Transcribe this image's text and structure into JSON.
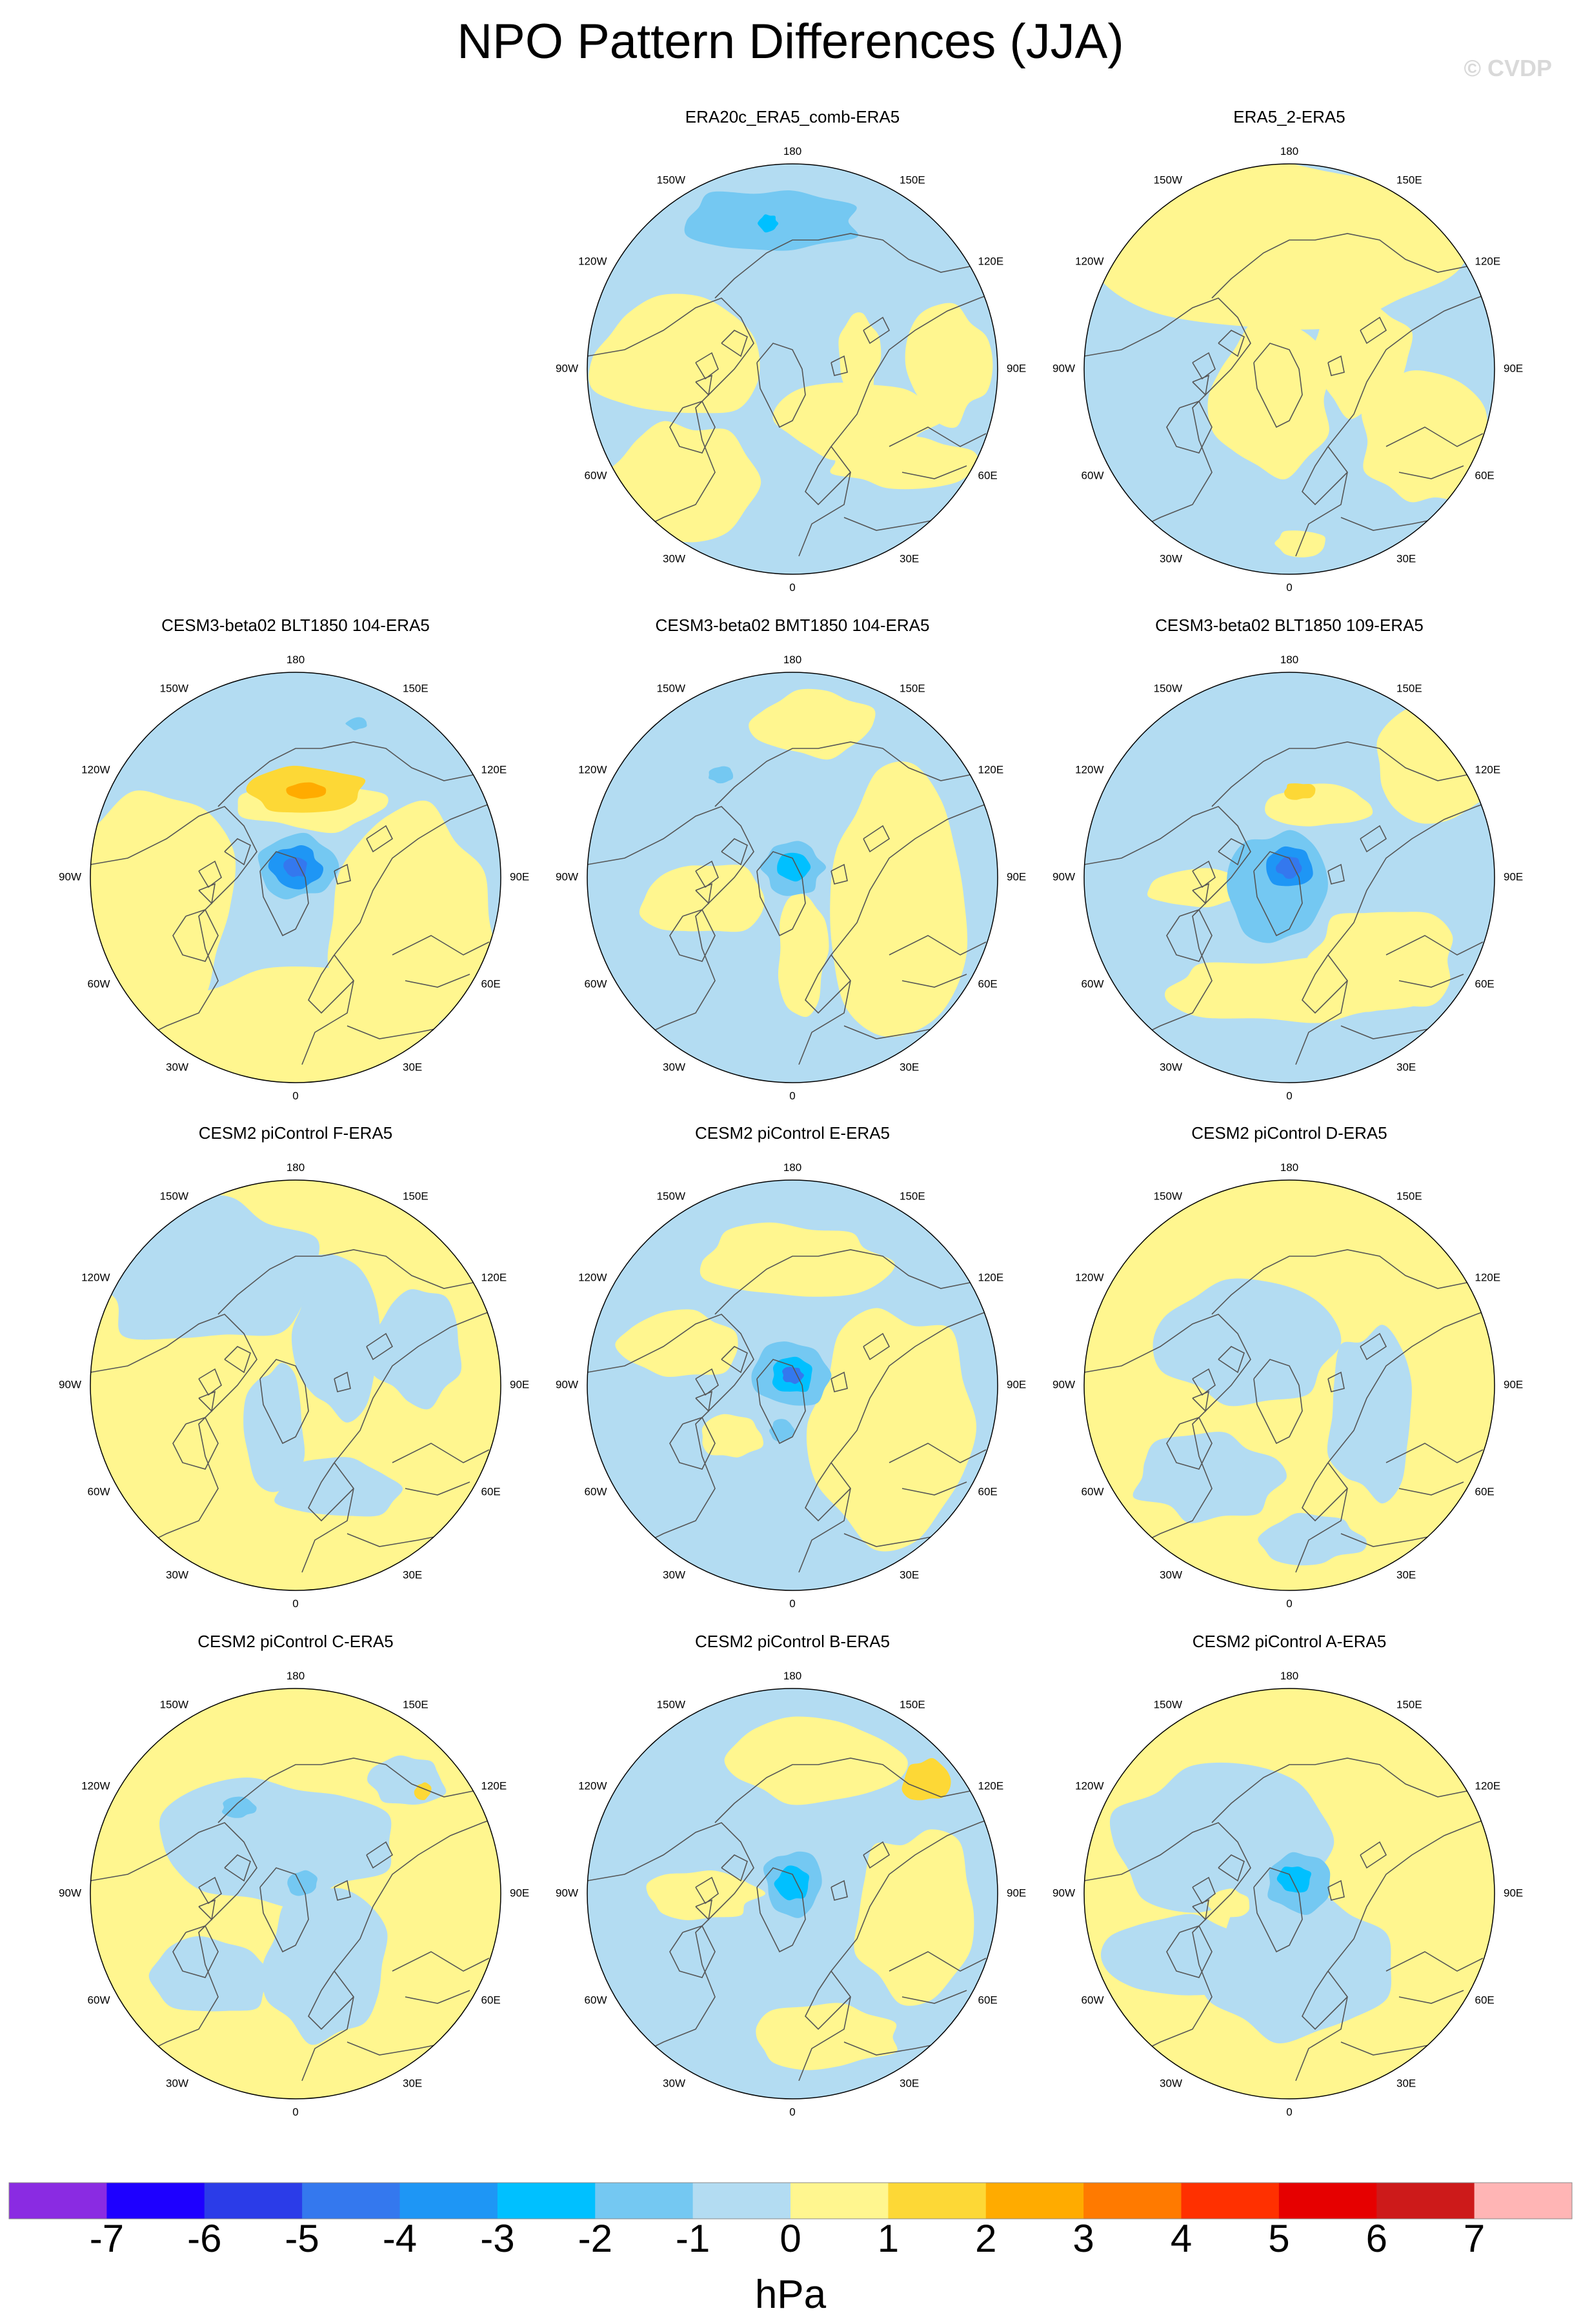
{
  "figure": {
    "title": "NPO Pattern Differences (JJA)",
    "credit": "© CVDP"
  },
  "panels": [
    {
      "title": "ERA20c_ERA5_comb-ERA5",
      "row": 0,
      "col": 1,
      "variant": 0
    },
    {
      "title": "ERA5_2-ERA5",
      "row": 0,
      "col": 2,
      "variant": 1
    },
    {
      "title": "CESM3-beta02 BLT1850 104-ERA5",
      "row": 1,
      "col": 0,
      "variant": 2
    },
    {
      "title": "CESM3-beta02 BMT1850 104-ERA5",
      "row": 1,
      "col": 1,
      "variant": 3
    },
    {
      "title": "CESM3-beta02 BLT1850 109-ERA5",
      "row": 1,
      "col": 2,
      "variant": 4
    },
    {
      "title": "CESM2 piControl F-ERA5",
      "row": 2,
      "col": 0,
      "variant": 5
    },
    {
      "title": "CESM2 piControl E-ERA5",
      "row": 2,
      "col": 1,
      "variant": 6
    },
    {
      "title": "CESM2 piControl D-ERA5",
      "row": 2,
      "col": 2,
      "variant": 7
    },
    {
      "title": "CESM2 piControl C-ERA5",
      "row": 3,
      "col": 0,
      "variant": 8
    },
    {
      "title": "CESM2 piControl B-ERA5",
      "row": 3,
      "col": 1,
      "variant": 9
    },
    {
      "title": "CESM2 piControl A-ERA5",
      "row": 3,
      "col": 2,
      "variant": 10
    }
  ],
  "longitude_labels": [
    "180",
    "150E",
    "120E",
    "90E",
    "60E",
    "30E",
    "0",
    "30W",
    "60W",
    "90W",
    "120W",
    "150W"
  ],
  "colorbar": {
    "units": "hPa",
    "tick_labels": [
      "-7",
      "-6",
      "-5",
      "-4",
      "-3",
      "-2",
      "-1",
      "0",
      "1",
      "2",
      "3",
      "4",
      "5",
      "6",
      "7"
    ],
    "colors": [
      "#8a2be2",
      "#1e00ff",
      "#2b3ce8",
      "#3478ee",
      "#1e96f5",
      "#00c0ff",
      "#74c8f2",
      "#b3dcf2",
      "#fff68f",
      "#fdd836",
      "#ffab00",
      "#ff7a00",
      "#ff3000",
      "#e60000",
      "#cd1a1a",
      "#ffb5b5"
    ]
  }
}
